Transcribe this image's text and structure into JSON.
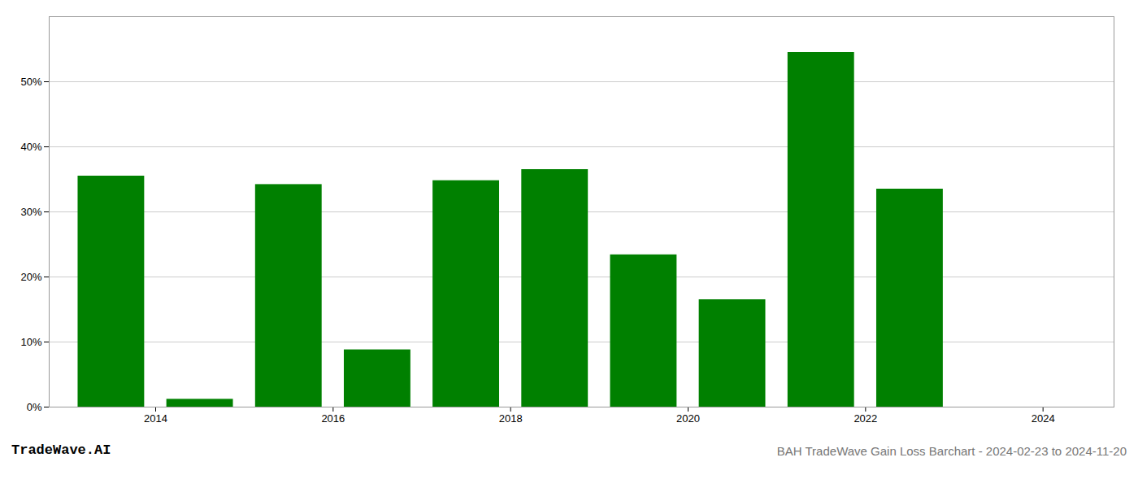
{
  "chart_data": {
    "type": "bar",
    "title": "BAH TradeWave Gain Loss Barchart - 2024-02-23 to 2024-11-20",
    "annotations": [
      "TradeWave.AI"
    ],
    "x": [
      2013.5,
      2014.5,
      2015.5,
      2016.5,
      2017.5,
      2018.5,
      2019.5,
      2020.5,
      2021.5,
      2022.5
    ],
    "values": [
      35.5,
      1.2,
      34.2,
      8.8,
      34.8,
      36.5,
      23.4,
      16.5,
      54.5,
      33.5
    ],
    "color": "#008000",
    "xlim": [
      2012.8,
      2024.8
    ],
    "xticks": [
      2014,
      2016,
      2018,
      2020,
      2022,
      2024
    ],
    "ylim": [
      0,
      60
    ],
    "yticks": [
      {
        "value": 0,
        "label": "0%"
      },
      {
        "value": 10,
        "label": "10%"
      },
      {
        "value": 20,
        "label": "20%"
      },
      {
        "value": 30,
        "label": "30%"
      },
      {
        "value": 40,
        "label": "40%"
      },
      {
        "value": 50,
        "label": "50%"
      }
    ],
    "grid": true
  }
}
